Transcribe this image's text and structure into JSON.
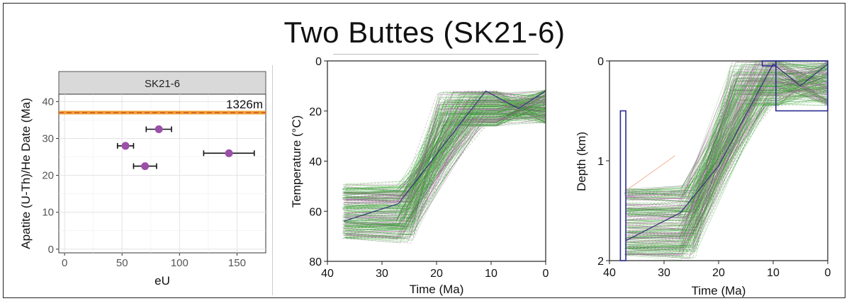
{
  "title": "Two Buttes (SK21-6)",
  "colors": {
    "point": "#9b4fa8",
    "date_line": "#f0a030",
    "date_dash": "#c0392b",
    "path_green": "#2e9e2e",
    "path_magenta": "#b05aa8",
    "mean_path": "#3b3b7a",
    "box": "#2b2b8f"
  },
  "chart_data": [
    {
      "type": "scatter",
      "panel_title": "SK21-6",
      "xlabel": "eU",
      "ylabel": "Apatite (U-Th)/He Date (Ma)",
      "xlim": [
        -5,
        175
      ],
      "ylim": [
        -1,
        42
      ],
      "xticks": [
        0,
        50,
        100,
        150
      ],
      "yticks": [
        0,
        10,
        20,
        30,
        40
      ],
      "grid": true,
      "points": [
        {
          "x": 53,
          "y": 28,
          "xerr": 7
        },
        {
          "x": 70,
          "y": 22.5,
          "xerr": 10
        },
        {
          "x": 82,
          "y": 32.5,
          "xerr": 11
        },
        {
          "x": 143,
          "y": 26,
          "xerr": 22
        }
      ],
      "reference_line": {
        "y": 37,
        "label": "1326m"
      }
    },
    {
      "type": "line",
      "xlabel": "Time (Ma)",
      "ylabel": "Temperature (°C)",
      "xlim": [
        40,
        0
      ],
      "ylim": [
        80,
        0
      ],
      "xticks": [
        40,
        30,
        20,
        10,
        0
      ],
      "yticks": [
        0,
        20,
        40,
        60,
        80
      ],
      "mean_path": {
        "x": [
          37,
          27,
          11,
          5,
          0
        ],
        "y": [
          64,
          57,
          12,
          19,
          12
        ]
      }
    },
    {
      "type": "line",
      "xlabel": "Time (Ma)",
      "ylabel": "Depth (km)",
      "xlim": [
        40,
        0
      ],
      "ylim": [
        2,
        0
      ],
      "xticks": [
        40,
        30,
        20,
        10,
        0
      ],
      "yticks": [
        0,
        1,
        2
      ],
      "mean_path": {
        "x": [
          37,
          27,
          20,
          10,
          5,
          0
        ],
        "y": [
          1.8,
          1.52,
          1.05,
          0.03,
          0.25,
          0.03
        ]
      }
    }
  ]
}
